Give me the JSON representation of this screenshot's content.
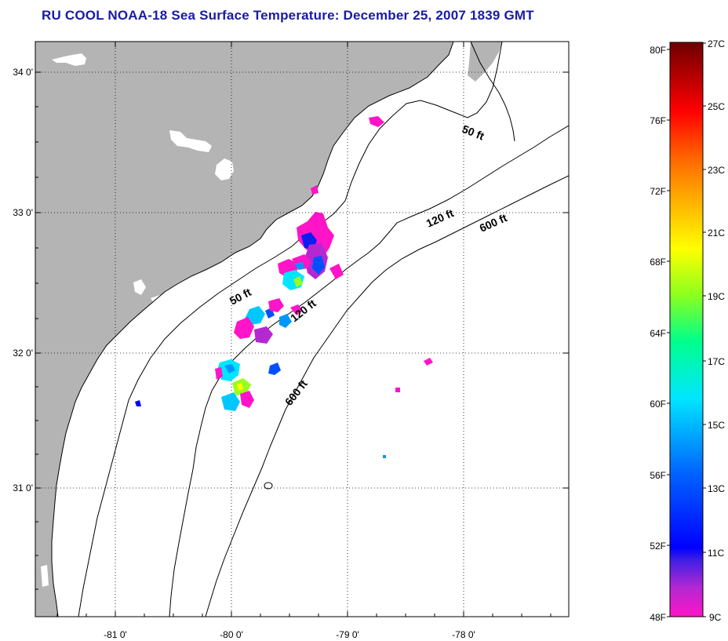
{
  "title": "RU COOL  NOAA-18  Sea Surface Temperature:  December 25, 2007 1839 GMT",
  "map": {
    "lat_ticks": [
      "34 0'",
      "33 0'",
      "32 0'",
      "31 0'"
    ],
    "lon_ticks": [
      "-81 0'",
      "-80 0'",
      "-79 0'",
      "-78 0'"
    ],
    "contours": [
      {
        "label": "50 ft",
        "depth": 50
      },
      {
        "label": "120 ft",
        "depth": 120
      },
      {
        "label": "600 ft",
        "depth": 600
      }
    ],
    "land_color": "#b4b4b4",
    "water_color": "#ffffff"
  },
  "colorbar": {
    "fahrenheit_labels": [
      "80F",
      "76F",
      "72F",
      "68F",
      "64F",
      "60F",
      "56F",
      "52F",
      "48F"
    ],
    "celsius_labels": [
      "27C",
      "25C",
      "23C",
      "21C",
      "19C",
      "17C",
      "15C",
      "13C",
      "11C",
      "9C"
    ],
    "colors": [
      "#ff14c8",
      "#6633cc",
      "#0000ff",
      "#0096ff",
      "#00e5ff",
      "#00ff96",
      "#66ff33",
      "#ffff00",
      "#ffa500",
      "#ff3200",
      "#ff0000",
      "#8b0000"
    ]
  }
}
